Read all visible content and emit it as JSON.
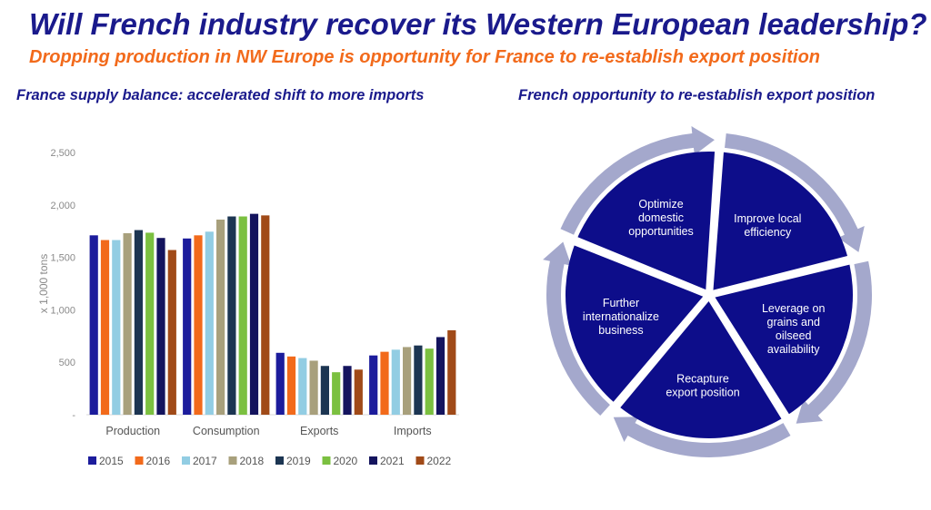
{
  "title": "Will French industry recover its Western European leadership?",
  "subtitle": "Dropping production in NW Europe is opportunity for France to re-establish export position",
  "left_heading": "France supply balance: accelerated shift to more imports",
  "right_heading": "French opportunity to re-establish export position",
  "colors": {
    "title": "#1a1a8c",
    "subtitle": "#f26a1b",
    "segment": "#0d0d8a",
    "arrow": "#a4a8cc"
  },
  "chart_data": {
    "type": "bar",
    "title": "France supply balance: accelerated shift to more imports",
    "ylabel": "x 1,000 tons",
    "ylim": [
      0,
      2500
    ],
    "yticks": [
      0,
      500,
      1000,
      1500,
      2000,
      2500
    ],
    "ytick_labels": [
      "-",
      "500",
      "1,000",
      "1,500",
      "2,000",
      "2,500"
    ],
    "categories": [
      "Production",
      "Consumption",
      "Exports",
      "Imports"
    ],
    "legend_position": "bottom",
    "series": [
      {
        "name": "2015",
        "color": "#1c1c9c",
        "values": [
          1710,
          1680,
          590,
          565
        ]
      },
      {
        "name": "2016",
        "color": "#f26a1b",
        "values": [
          1665,
          1710,
          555,
          600
        ]
      },
      {
        "name": "2017",
        "color": "#92cde3",
        "values": [
          1665,
          1745,
          540,
          620
        ]
      },
      {
        "name": "2018",
        "color": "#a8a07c",
        "values": [
          1730,
          1860,
          515,
          645
        ]
      },
      {
        "name": "2019",
        "color": "#1c3552",
        "values": [
          1760,
          1890,
          465,
          660
        ]
      },
      {
        "name": "2020",
        "color": "#7bc040",
        "values": [
          1735,
          1890,
          405,
          630
        ]
      },
      {
        "name": "2021",
        "color": "#14145e",
        "values": [
          1685,
          1915,
          465,
          740
        ]
      },
      {
        "name": "2022",
        "color": "#a04a18",
        "values": [
          1570,
          1900,
          430,
          805
        ]
      }
    ]
  },
  "cycle": {
    "segments": [
      {
        "label": "Improve local efficiency",
        "lines": [
          "Improve local",
          "efficiency"
        ]
      },
      {
        "label": "Leverage on grains and oilseed availability",
        "lines": [
          "Leverage on",
          "grains and",
          "oilseed",
          "availability"
        ]
      },
      {
        "label": "Recapture export position",
        "lines": [
          "Recapture",
          "export position"
        ]
      },
      {
        "label": "Further internationalize business",
        "lines": [
          "Further",
          "internationalize",
          "business"
        ]
      },
      {
        "label": "Optimize domestic opportunities",
        "lines": [
          "Optimize",
          "domestic",
          "opportunities"
        ]
      }
    ]
  }
}
